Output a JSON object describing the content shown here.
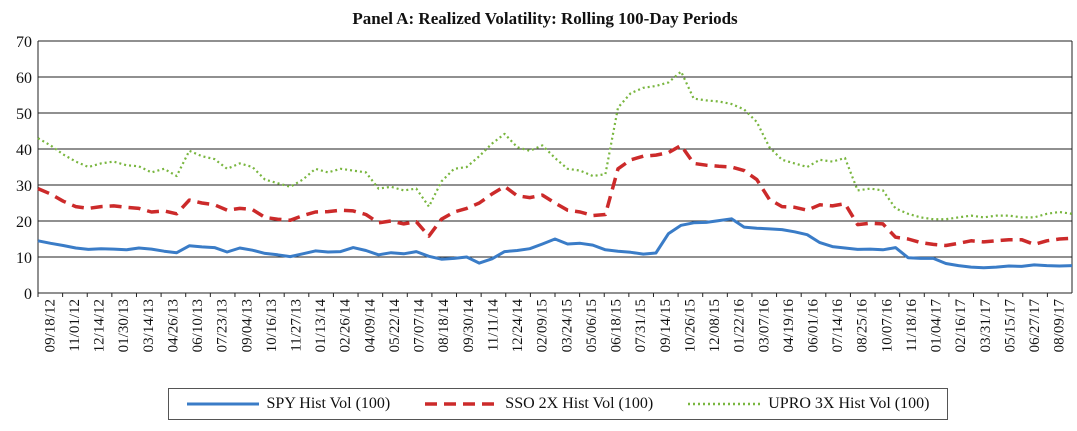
{
  "chart_data": {
    "type": "line",
    "title": "Panel A: Realized Volatility: Rolling 100-Day Periods",
    "xlabel": "",
    "ylabel": "",
    "ylim": [
      0,
      70
    ],
    "yticks": [
      "0",
      "10",
      "20",
      "30",
      "40",
      "50",
      "60",
      "70"
    ],
    "grid": "horizontal",
    "legend_position": "bottom",
    "x_tick_labels": [
      "09/18/12",
      "11/01/12",
      "12/14/12",
      "01/30/13",
      "03/14/13",
      "04/26/13",
      "06/10/13",
      "07/23/13",
      "09/04/13",
      "10/16/13",
      "11/27/13",
      "01/13/14",
      "02/26/14",
      "04/09/14",
      "05/22/14",
      "07/07/14",
      "08/18/14",
      "09/30/14",
      "11/11/14",
      "12/24/14",
      "02/09/15",
      "03/24/15",
      "05/06/15",
      "06/18/15",
      "07/31/15",
      "09/14/15",
      "10/26/15",
      "12/08/15",
      "01/22/16",
      "03/07/16",
      "04/19/16",
      "06/01/16",
      "07/14/16",
      "08/25/16",
      "10/07/16",
      "11/18/16",
      "01/04/17",
      "02/16/17",
      "03/31/17",
      "05/15/17",
      "06/27/17",
      "08/09/17"
    ],
    "series": [
      {
        "name": "SPY Hist Vol (100)",
        "color": "#3a7cc7",
        "style": "solid",
        "values": [
          14.5,
          13.8,
          13.2,
          12.5,
          12.1,
          12.3,
          12.2,
          12.0,
          12.5,
          12.2,
          11.6,
          11.2,
          13.1,
          12.8,
          12.6,
          11.4,
          12.5,
          11.9,
          11.0,
          10.6,
          10.1,
          10.9,
          11.7,
          11.4,
          11.5,
          12.6,
          11.8,
          10.6,
          11.2,
          10.9,
          11.5,
          10.2,
          9.4,
          9.6,
          10.0,
          8.3,
          9.5,
          11.5,
          11.8,
          12.3,
          13.6,
          15.0,
          13.6,
          13.8,
          13.3,
          12.0,
          11.6,
          11.3,
          10.8,
          11.1,
          16.5,
          18.8,
          19.5,
          19.6,
          20.1,
          20.6,
          18.3,
          18.0,
          17.8,
          17.6,
          17.0,
          16.2,
          14.0,
          12.9,
          12.5,
          12.1,
          12.2,
          12.0,
          12.6,
          9.8,
          9.6,
          9.6,
          8.2,
          7.6,
          7.2,
          7.0,
          7.2,
          7.5,
          7.4,
          7.8,
          7.6,
          7.5,
          7.6
        ]
      },
      {
        "name": "SSO 2X Hist Vol (100)",
        "color": "#cc2a2a",
        "style": "dashed",
        "values": [
          29.0,
          27.5,
          25.5,
          24.0,
          23.5,
          24.0,
          24.2,
          23.8,
          23.5,
          22.5,
          22.8,
          22.0,
          25.8,
          25.0,
          24.5,
          23.0,
          23.5,
          23.2,
          21.0,
          20.5,
          20.2,
          21.5,
          22.5,
          22.6,
          23.0,
          22.8,
          21.8,
          19.5,
          20.0,
          19.2,
          19.8,
          15.8,
          20.5,
          22.5,
          23.5,
          25.0,
          27.5,
          29.6,
          27.0,
          26.5,
          27.2,
          25.0,
          23.0,
          22.5,
          21.5,
          21.8,
          34.5,
          37.0,
          38.0,
          38.3,
          39.0,
          41.0,
          36.0,
          35.5,
          35.2,
          35.0,
          34.0,
          31.5,
          26.0,
          24.0,
          23.8,
          23.0,
          24.5,
          24.2,
          24.8,
          19.0,
          19.4,
          19.2,
          15.5,
          15.0,
          14.0,
          13.5,
          13.2,
          13.8,
          14.5,
          14.2,
          14.5,
          14.8,
          14.8,
          13.5,
          14.5,
          15.0,
          15.2
        ]
      },
      {
        "name": "UPRO 3X Hist Vol (100)",
        "color": "#79b63f",
        "style": "dotted",
        "values": [
          43.0,
          41.0,
          38.5,
          36.5,
          35.0,
          36.0,
          36.5,
          35.5,
          35.2,
          33.5,
          34.5,
          32.5,
          39.5,
          38.0,
          37.2,
          34.5,
          36.0,
          35.0,
          31.5,
          30.5,
          29.5,
          31.5,
          34.5,
          33.5,
          34.5,
          34.0,
          33.5,
          29.0,
          29.5,
          28.5,
          29.0,
          24.0,
          31.0,
          34.5,
          35.0,
          38.0,
          41.5,
          44.2,
          40.5,
          39.5,
          41.0,
          37.5,
          34.5,
          34.0,
          32.5,
          33.0,
          51.5,
          55.5,
          57.0,
          57.5,
          58.5,
          61.5,
          54.0,
          53.5,
          53.2,
          52.5,
          51.0,
          47.5,
          40.5,
          37.0,
          36.0,
          35.0,
          37.0,
          36.5,
          37.5,
          28.5,
          29.0,
          28.5,
          23.5,
          22.0,
          21.0,
          20.5,
          20.5,
          21.0,
          21.5,
          21.0,
          21.5,
          21.5,
          21.0,
          21.0,
          22.0,
          22.5,
          22.0
        ]
      }
    ]
  }
}
